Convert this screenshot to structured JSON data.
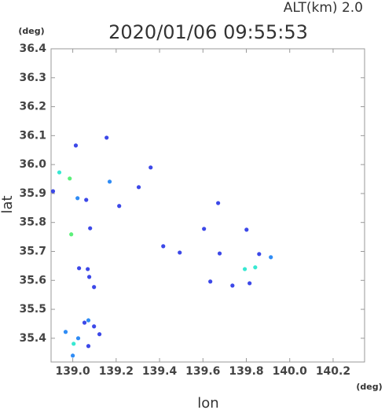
{
  "chart_data": {
    "type": "scatter",
    "title": "2020/01/06 09:55:53",
    "subtitle": "ALT(km) 2.0",
    "x_label": "lon",
    "y_label": "lat",
    "x_unit": "(deg)",
    "y_unit": "(deg)",
    "xlim": [
      138.9,
      140.345
    ],
    "ylim": [
      35.318,
      36.4
    ],
    "xticks": [
      {
        "value": 139.0,
        "label": "139.0"
      },
      139.2,
      139.4,
      139.6,
      139.8,
      {
        "value": 140.0,
        "label": "140.0"
      },
      140.2
    ],
    "yticks": [
      35.4,
      35.5,
      35.6,
      35.7,
      35.8,
      35.9,
      {
        "value": 36.0,
        "label": "36.0"
      },
      36.1,
      36.2,
      36.3,
      36.4
    ],
    "series": [
      {
        "color": "#3c48e8",
        "x": [
          139.014,
          139.156,
          138.909,
          139.062,
          139.214,
          139.08,
          139.304,
          139.359,
          139.417,
          139.493,
          139.67,
          139.605,
          139.801,
          139.677,
          139.634,
          139.736,
          139.859,
          139.815,
          139.029,
          139.069,
          139.098,
          139.076,
          139.072,
          139.123,
          139.098,
          139.054
        ],
        "y": [
          36.066,
          36.093,
          35.908,
          35.878,
          35.857,
          35.78,
          35.922,
          35.99,
          35.718,
          35.696,
          35.867,
          35.778,
          35.775,
          35.693,
          35.596,
          35.582,
          35.691,
          35.59,
          35.642,
          35.639,
          35.577,
          35.612,
          35.373,
          35.414,
          35.441,
          35.454
        ]
      },
      {
        "color": "#2f8cf5",
        "x": [
          139.022,
          139.17,
          139.913,
          138.967,
          139.025,
          139.072,
          139.0
        ],
        "y": [
          35.884,
          35.941,
          35.68,
          35.422,
          35.4,
          35.462,
          35.34
        ]
      },
      {
        "color": "#37e8d2",
        "x": [
          138.938,
          139.793,
          139.841,
          139.004
        ],
        "y": [
          35.973,
          35.639,
          35.645,
          35.381
        ]
      },
      {
        "color": "#5cf07a",
        "x": [
          138.986,
          138.993
        ],
        "y": [
          35.952,
          35.759
        ]
      }
    ]
  }
}
